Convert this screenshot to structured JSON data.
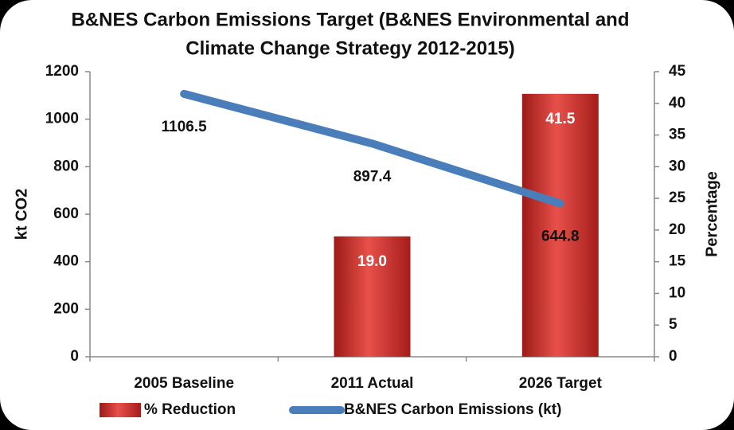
{
  "chart_data": {
    "type": "bar",
    "title": [
      "B&NES Carbon Emissions Target (B&NES Environmental and",
      "Climate Change Strategy 2012-2015)"
    ],
    "y_label": "kt CO2",
    "y2_label": "Percentage",
    "categories": [
      "2005 Baseline",
      "2011 Actual",
      "2026 Target"
    ],
    "series": [
      {
        "name": "% Reduction",
        "color": "#d9302c",
        "axis": "y2",
        "values": [
          null,
          19,
          41.5
        ],
        "value_labels": [
          null,
          "19.0",
          "41.5"
        ]
      },
      {
        "name": "B&NES Carbon Emissions (kt)",
        "type": "line",
        "color": "#4a7ebb",
        "axis": "y",
        "values": [
          1106.5,
          897.4,
          644.8
        ]
      }
    ],
    "ylim": [
      0,
      1200
    ],
    "yticks": [
      0,
      200,
      400,
      600,
      800,
      1000,
      1200
    ],
    "y2lim": [
      0,
      45
    ],
    "y2ticks": [
      0,
      5,
      10,
      15,
      20,
      25,
      30,
      35,
      40,
      45
    ],
    "legend": "bottom"
  }
}
